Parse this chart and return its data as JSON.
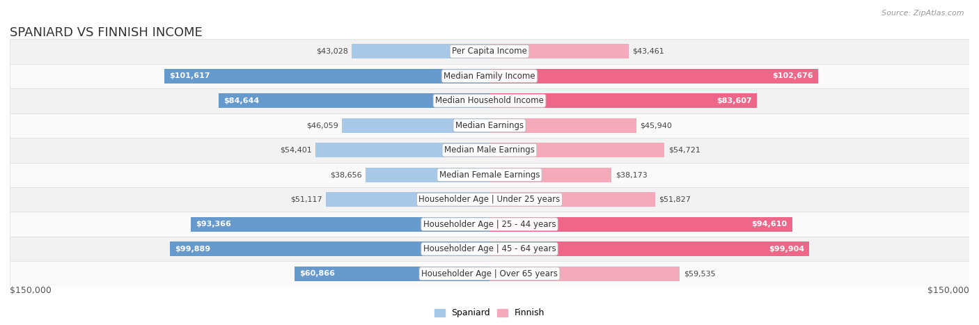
{
  "title": "SPANIARD VS FINNISH INCOME",
  "source": "Source: ZipAtlas.com",
  "categories": [
    "Per Capita Income",
    "Median Family Income",
    "Median Household Income",
    "Median Earnings",
    "Median Male Earnings",
    "Median Female Earnings",
    "Householder Age | Under 25 years",
    "Householder Age | 25 - 44 years",
    "Householder Age | 45 - 64 years",
    "Householder Age | Over 65 years"
  ],
  "spaniard_values": [
    43028,
    101617,
    84644,
    46059,
    54401,
    38656,
    51117,
    93366,
    99889,
    60866
  ],
  "finnish_values": [
    43461,
    102676,
    83607,
    45940,
    54721,
    38173,
    51827,
    94610,
    99904,
    59535
  ],
  "spaniard_color_light": "#A8C8E8",
  "spaniard_color_dark": "#6699CC",
  "finnish_color_light": "#F5AABB",
  "finnish_color_dark": "#EE6688",
  "row_colors": [
    "#F0F0F0",
    "#FFFFFF",
    "#F0F0F0",
    "#FFFFFF",
    "#F0F0F0",
    "#FFFFFF",
    "#F0F0F0",
    "#FFFFFF",
    "#F0F0F0",
    "#FFFFFF"
  ],
  "max_value": 150000,
  "xlabel_left": "$150,000",
  "xlabel_right": "$150,000",
  "legend_spaniard": "Spaniard",
  "legend_finnish": "Finnish",
  "title_fontsize": 13,
  "label_fontsize": 8.5,
  "value_fontsize": 8,
  "inside_threshold": 60000,
  "bar_height": 0.6,
  "figsize": [
    14.06,
    4.67
  ],
  "dpi": 100
}
